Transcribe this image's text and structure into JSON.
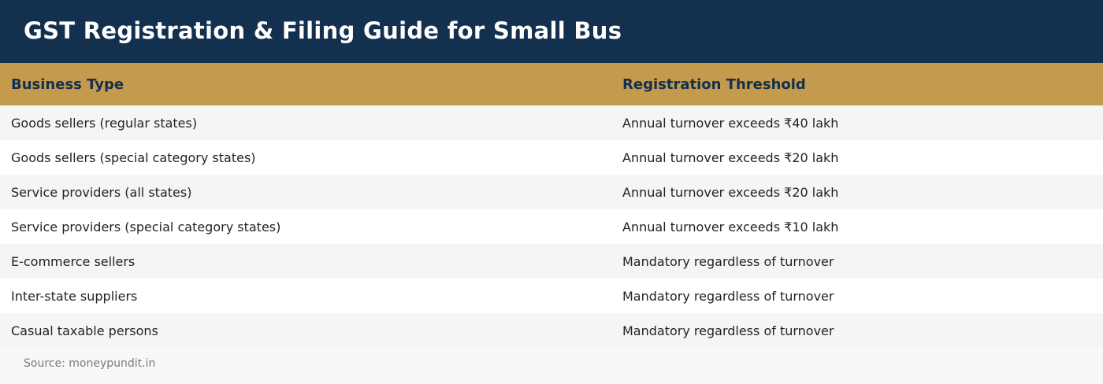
{
  "header": {
    "title": "GST Registration & Filing Guide for Small Bus"
  },
  "table": {
    "columns": [
      "Business Type",
      "Registration Threshold"
    ],
    "rows": [
      [
        "Goods sellers (regular states)",
        "Annual turnover exceeds ₹40 lakh"
      ],
      [
        "Goods sellers (special category states)",
        "Annual turnover exceeds ₹20 lakh"
      ],
      [
        "Service providers (all states)",
        "Annual turnover exceeds ₹20 lakh"
      ],
      [
        "Service providers (special category states)",
        "Annual turnover exceeds ₹10 lakh"
      ],
      [
        "E-commerce sellers",
        "Mandatory regardless of turnover"
      ],
      [
        "Inter-state suppliers",
        "Mandatory regardless of turnover"
      ],
      [
        "Casual taxable persons",
        "Mandatory regardless of turnover"
      ]
    ]
  },
  "footer": {
    "source": "Source: moneypundit.in"
  },
  "colors": {
    "title_bar": "#14304f",
    "header_row": "#c49a4c",
    "header_text": "#14304f",
    "row_alt": "#f4f5f7",
    "row": "#ffffff"
  }
}
